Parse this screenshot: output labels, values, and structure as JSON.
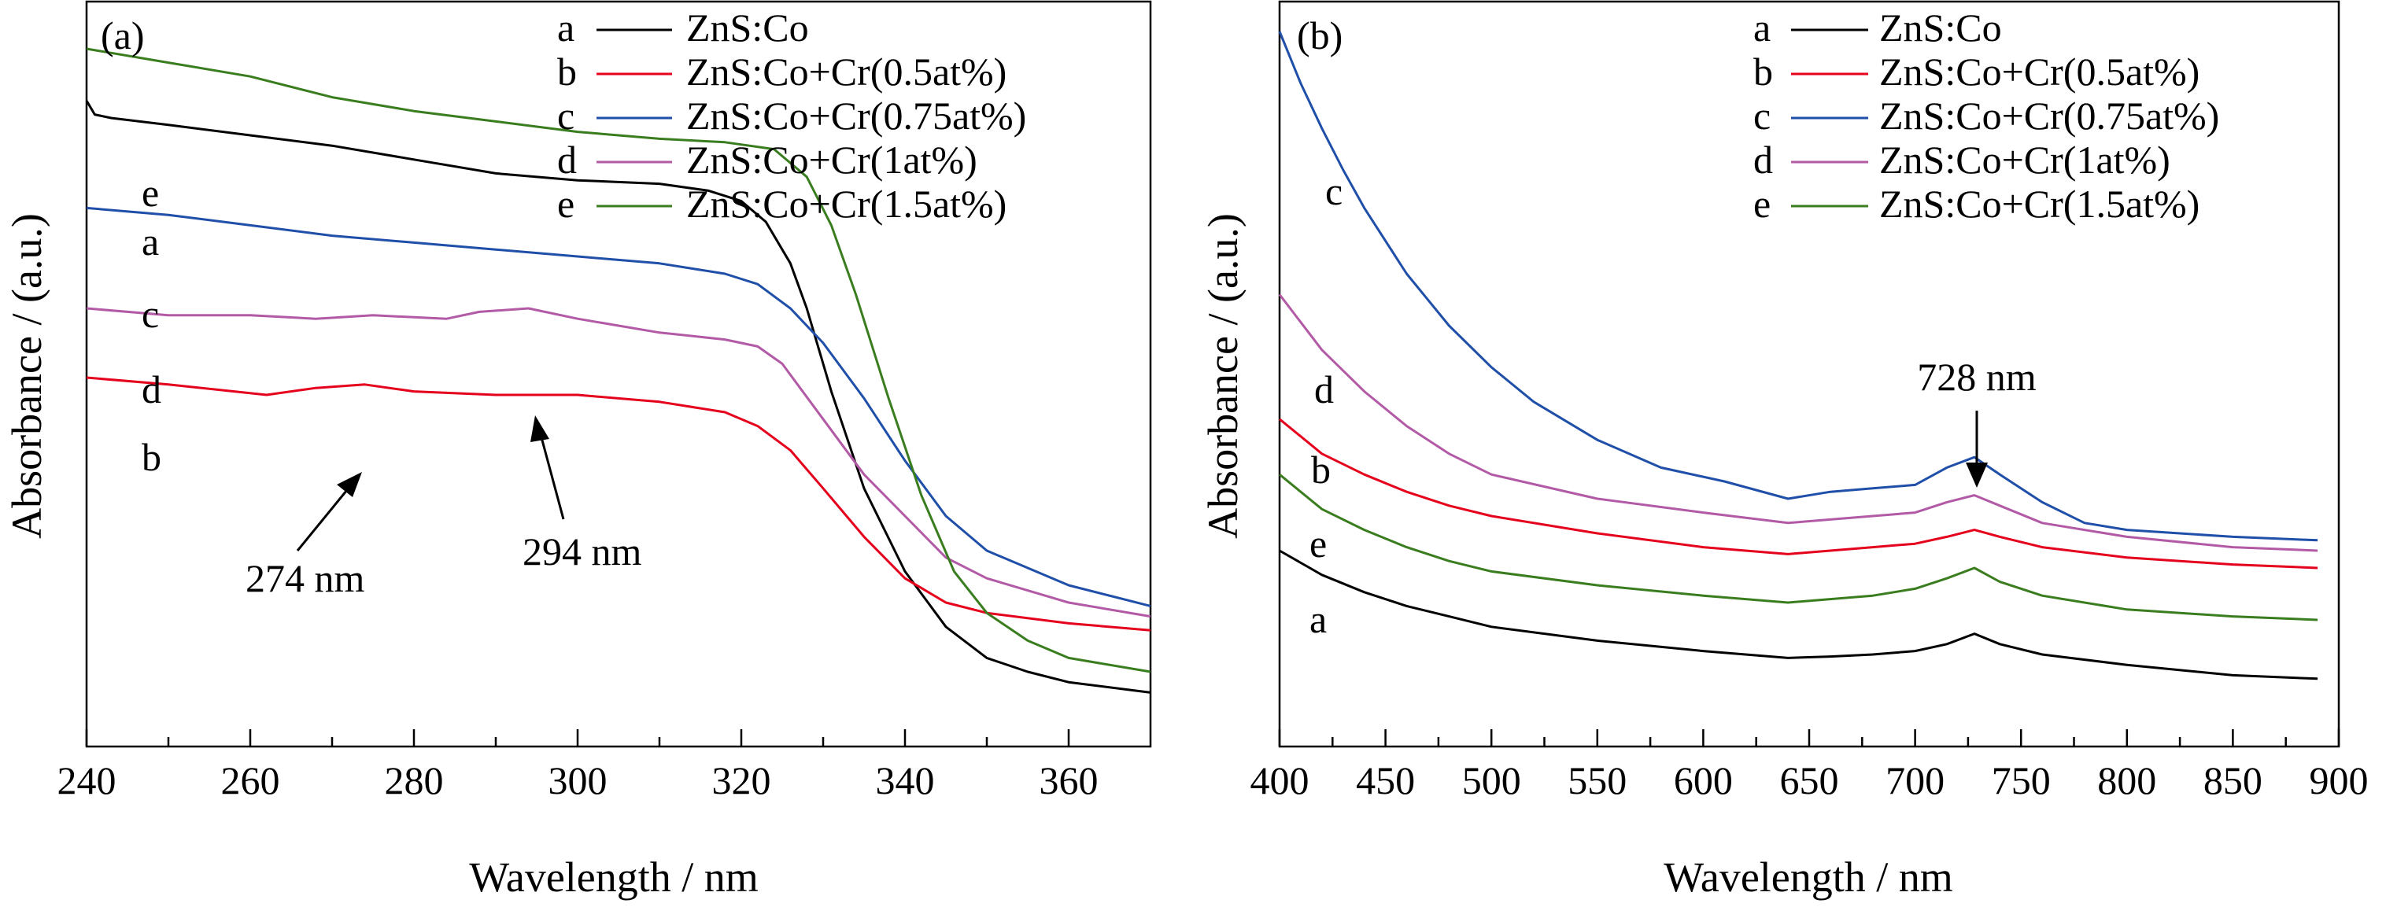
{
  "chart_data": [
    {
      "type": "line",
      "panel_label": "(a)",
      "xlabel": "Wavelength / nm",
      "ylabel": "Absorbance / (a.u.)",
      "xlim": [
        240,
        370
      ],
      "ylim": [
        0,
        1
      ],
      "x_ticks": [
        240,
        260,
        280,
        300,
        320,
        340,
        360
      ],
      "x_tick_labels": [
        "240",
        "260",
        "280",
        "300",
        "320",
        "340",
        "360"
      ],
      "y_tick_labels": [],
      "legend_position": "top-right",
      "series": [
        {
          "key": "a",
          "name": "ZnS:Co",
          "label_mark": "a",
          "color": "#000000",
          "x": [
            240,
            241,
            243,
            250,
            260,
            270,
            280,
            290,
            300,
            310,
            316,
            320,
            323,
            326,
            328,
            331,
            335,
            340,
            345,
            350,
            355,
            360,
            370
          ],
          "y": [
            0.9,
            0.88,
            0.875,
            0.865,
            0.85,
            0.835,
            0.815,
            0.795,
            0.785,
            0.78,
            0.77,
            0.755,
            0.725,
            0.665,
            0.6,
            0.48,
            0.34,
            0.22,
            0.14,
            0.095,
            0.075,
            0.06,
            0.045
          ]
        },
        {
          "key": "b",
          "name": "ZnS:Co+Cr(0.5at%)",
          "label_mark": "b",
          "color": "#e5001c",
          "x": [
            240,
            250,
            262,
            268,
            274,
            280,
            290,
            300,
            310,
            318,
            322,
            326,
            330,
            335,
            340,
            345,
            350,
            360,
            370
          ],
          "y": [
            0.5,
            0.49,
            0.475,
            0.485,
            0.49,
            0.48,
            0.475,
            0.475,
            0.465,
            0.45,
            0.43,
            0.395,
            0.34,
            0.27,
            0.21,
            0.175,
            0.16,
            0.145,
            0.135
          ]
        },
        {
          "key": "c",
          "name": "ZnS:Co+Cr(0.75at%)",
          "label_mark": "c",
          "color": "#1f4fa8",
          "x": [
            240,
            250,
            260,
            270,
            280,
            290,
            300,
            310,
            318,
            322,
            326,
            330,
            335,
            340,
            345,
            350,
            360,
            370
          ],
          "y": [
            0.745,
            0.735,
            0.72,
            0.705,
            0.695,
            0.685,
            0.675,
            0.665,
            0.65,
            0.635,
            0.6,
            0.55,
            0.47,
            0.38,
            0.3,
            0.25,
            0.2,
            0.17
          ]
        },
        {
          "key": "d",
          "name": "ZnS:Co+Cr(1at%)",
          "label_mark": "d",
          "color": "#b35aa6",
          "x": [
            240,
            250,
            260,
            268,
            275,
            284,
            288,
            294,
            300,
            310,
            318,
            322,
            325,
            330,
            335,
            340,
            345,
            350,
            360,
            370
          ],
          "y": [
            0.6,
            0.59,
            0.59,
            0.585,
            0.59,
            0.585,
            0.595,
            0.6,
            0.585,
            0.565,
            0.555,
            0.545,
            0.52,
            0.44,
            0.36,
            0.3,
            0.24,
            0.21,
            0.175,
            0.155
          ]
        },
        {
          "key": "e",
          "name": "ZnS:Co+Cr(1.5at%)",
          "label_mark": "e",
          "color": "#3a7d1f",
          "x": [
            240,
            250,
            260,
            270,
            280,
            290,
            300,
            310,
            318,
            324,
            328,
            331,
            334,
            338,
            342,
            346,
            350,
            355,
            360,
            370
          ],
          "y": [
            0.975,
            0.955,
            0.935,
            0.905,
            0.885,
            0.87,
            0.855,
            0.845,
            0.84,
            0.83,
            0.79,
            0.72,
            0.62,
            0.47,
            0.33,
            0.22,
            0.16,
            0.12,
            0.095,
            0.075
          ]
        }
      ],
      "annotations": [
        {
          "text": "274 nm",
          "x": 274,
          "y": 0.49
        },
        {
          "text": "294 nm",
          "x": 294,
          "y": 0.6
        }
      ]
    },
    {
      "type": "line",
      "panel_label": "(b)",
      "xlabel": "Wavelength / nm",
      "ylabel": "Absorbance / (a.u.)",
      "xlim": [
        400,
        900
      ],
      "ylim": [
        0,
        1
      ],
      "x_ticks": [
        400,
        450,
        500,
        550,
        600,
        650,
        700,
        750,
        800,
        850,
        900
      ],
      "x_tick_labels": [
        "400",
        "450",
        "500",
        "550",
        "600",
        "650",
        "700",
        "750",
        "800",
        "850",
        "900"
      ],
      "y_tick_labels": [],
      "legend_position": "top-right",
      "series": [
        {
          "key": "a",
          "name": "ZnS:Co",
          "label_mark": "a",
          "color": "#000000",
          "x": [
            400,
            420,
            440,
            460,
            480,
            500,
            550,
            600,
            640,
            660,
            680,
            700,
            715,
            728,
            740,
            760,
            800,
            850,
            890
          ],
          "y": [
            0.25,
            0.215,
            0.19,
            0.17,
            0.155,
            0.14,
            0.12,
            0.105,
            0.095,
            0.097,
            0.1,
            0.105,
            0.115,
            0.13,
            0.115,
            0.1,
            0.085,
            0.07,
            0.065
          ]
        },
        {
          "key": "b",
          "name": "ZnS:Co+Cr(0.5at%)",
          "label_mark": "b",
          "color": "#e5001c",
          "x": [
            400,
            420,
            440,
            460,
            480,
            500,
            550,
            600,
            640,
            660,
            680,
            700,
            715,
            728,
            740,
            760,
            800,
            850,
            890
          ],
          "y": [
            0.44,
            0.39,
            0.36,
            0.335,
            0.315,
            0.3,
            0.275,
            0.255,
            0.245,
            0.25,
            0.255,
            0.26,
            0.27,
            0.28,
            0.27,
            0.255,
            0.24,
            0.23,
            0.225
          ]
        },
        {
          "key": "c",
          "name": "ZnS:Co+Cr(0.75at%)",
          "label_mark": "c",
          "color": "#1f4fa8",
          "x": [
            400,
            410,
            420,
            430,
            440,
            460,
            480,
            500,
            520,
            550,
            580,
            610,
            640,
            660,
            680,
            700,
            715,
            728,
            740,
            760,
            780,
            800,
            850,
            890
          ],
          "y": [
            1.0,
            0.925,
            0.86,
            0.8,
            0.745,
            0.65,
            0.575,
            0.515,
            0.465,
            0.41,
            0.37,
            0.35,
            0.325,
            0.335,
            0.34,
            0.345,
            0.37,
            0.385,
            0.36,
            0.32,
            0.29,
            0.28,
            0.27,
            0.265
          ]
        },
        {
          "key": "d",
          "name": "ZnS:Co+Cr(1at%)",
          "label_mark": "d",
          "color": "#b35aa6",
          "x": [
            400,
            420,
            440,
            460,
            480,
            500,
            550,
            600,
            640,
            660,
            680,
            700,
            715,
            728,
            740,
            760,
            800,
            850,
            890
          ],
          "y": [
            0.62,
            0.54,
            0.48,
            0.43,
            0.39,
            0.36,
            0.325,
            0.305,
            0.29,
            0.295,
            0.3,
            0.305,
            0.32,
            0.33,
            0.315,
            0.29,
            0.27,
            0.255,
            0.25
          ]
        },
        {
          "key": "e",
          "name": "ZnS:Co+Cr(1.5at%)",
          "label_mark": "e",
          "color": "#3a7d1f",
          "x": [
            400,
            420,
            440,
            460,
            480,
            500,
            550,
            600,
            640,
            660,
            680,
            700,
            715,
            728,
            740,
            760,
            800,
            850,
            890
          ],
          "y": [
            0.36,
            0.31,
            0.28,
            0.255,
            0.235,
            0.22,
            0.2,
            0.185,
            0.175,
            0.18,
            0.185,
            0.195,
            0.21,
            0.225,
            0.205,
            0.185,
            0.165,
            0.155,
            0.15
          ]
        }
      ],
      "annotations": [
        {
          "text": "728 nm",
          "x": 728,
          "y": 0.385
        }
      ]
    }
  ]
}
